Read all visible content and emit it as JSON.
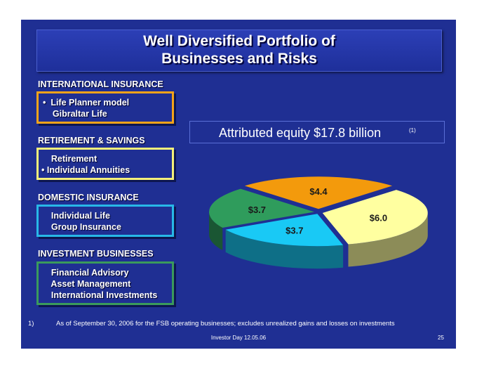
{
  "title": {
    "line1": "Well Diversified Portfolio of",
    "line2": "Businesses and Risks"
  },
  "sections": [
    {
      "heading": "INTERNATIONAL INSURANCE",
      "items": [
        "•  Life Planner model",
        "    Gibraltar Life"
      ],
      "border": "#f5a31a"
    },
    {
      "heading": "RETIREMENT & SAVINGS",
      "items": [
        "    Retirement",
        "• Individual Annuities"
      ],
      "border": "#f4f07a"
    },
    {
      "heading": "DOMESTIC INSURANCE",
      "items": [
        "    Individual Life",
        "    Group Insurance"
      ],
      "border": "#28b8e8"
    },
    {
      "heading": "INVESTMENT BUSINESSES",
      "items": [
        "    Financial Advisory",
        "    Asset Management",
        "    International Investments"
      ],
      "border": "#3a9a5c"
    }
  ],
  "equity": {
    "label": "Attributed equity $17.8 billion",
    "note": "(1)"
  },
  "chart_data": {
    "type": "pie",
    "title": "",
    "slices": [
      {
        "label": "$4.4",
        "value": 4.4,
        "color": "#f39a0c"
      },
      {
        "label": "$6.0",
        "value": 6.0,
        "color": "#ffffa0"
      },
      {
        "label": "$3.7",
        "value": 3.7,
        "color": "#19c9f5"
      },
      {
        "label": "$3.7",
        "value": 3.7,
        "color": "#2f9c5c"
      }
    ]
  },
  "footnote": {
    "num": "1)",
    "text": "As of September 30, 2006 for the FSB operating businesses; excludes unrealized gains and losses on investments"
  },
  "footer": {
    "text": "Investor Day 12.05.06",
    "page": "25"
  }
}
